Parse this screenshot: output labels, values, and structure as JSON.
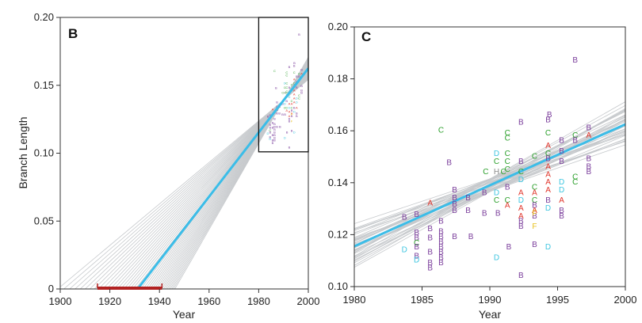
{
  "chart_data": [
    {
      "panel": "B",
      "type": "line",
      "title": "",
      "xlabel": "Year",
      "ylabel": "Branch Length",
      "xlim": [
        1900,
        2000
      ],
      "ylim": [
        0,
        0.2
      ],
      "xticks": [
        1900,
        1920,
        1940,
        1960,
        1980,
        2000
      ],
      "yticks": [
        "0",
        "0.05",
        "0.10",
        "0.15",
        "0.20"
      ],
      "regression": {
        "x": [
          1931.2,
          2000
        ],
        "y": [
          0.0,
          0.1625
        ],
        "color": "#3bbde8"
      },
      "bootstrap_lines": 40,
      "root_interval": {
        "x": [
          1915,
          1941
        ],
        "color": "#b22222"
      },
      "inset_box": {
        "x": [
          1980,
          2000
        ],
        "y": [
          0.101,
          0.2
        ]
      },
      "points": "same as panel C (scaled)"
    },
    {
      "panel": "C",
      "type": "scatter",
      "title": "",
      "xlabel": "Year",
      "ylabel": "",
      "xlim": [
        1980,
        2000
      ],
      "ylim": [
        0.1,
        0.2
      ],
      "xticks": [
        1980,
        1985,
        1990,
        1995,
        2000
      ],
      "yticks": [
        "0.10",
        "0.12",
        "0.14",
        "0.16",
        "0.18",
        "0.20"
      ],
      "regression": {
        "x": [
          1980,
          2000
        ],
        "y": [
          0.1155,
          0.1625
        ],
        "color": "#3bbde8"
      },
      "bootstrap_lines": 40,
      "subtype_colors": {
        "A": "#e0352b",
        "B": "#7a3d9b",
        "C": "#2ca02c",
        "D": "#3ec6e0",
        "F": "#e8c21e",
        "H": "#8a8a8a"
      },
      "points": [
        {
          "x": 1983.7,
          "y": 0.127,
          "l": "B"
        },
        {
          "x": 1983.7,
          "y": 0.1145,
          "l": "D"
        },
        {
          "x": 1984.6,
          "y": 0.128,
          "l": "B"
        },
        {
          "x": 1984.6,
          "y": 0.121,
          "l": "B"
        },
        {
          "x": 1984.6,
          "y": 0.119,
          "l": "B"
        },
        {
          "x": 1984.6,
          "y": 0.117,
          "l": "C"
        },
        {
          "x": 1984.6,
          "y": 0.1155,
          "l": "B"
        },
        {
          "x": 1984.6,
          "y": 0.112,
          "l": "B"
        },
        {
          "x": 1984.6,
          "y": 0.1105,
          "l": "D"
        },
        {
          "x": 1985.6,
          "y": 0.1325,
          "l": "A"
        },
        {
          "x": 1985.6,
          "y": 0.1225,
          "l": "B"
        },
        {
          "x": 1985.6,
          "y": 0.119,
          "l": "B"
        },
        {
          "x": 1985.6,
          "y": 0.1135,
          "l": "B"
        },
        {
          "x": 1985.6,
          "y": 0.1095,
          "l": "B"
        },
        {
          "x": 1985.6,
          "y": 0.1075,
          "l": "B"
        },
        {
          "x": 1986.4,
          "y": 0.1605,
          "l": "C"
        },
        {
          "x": 1986.4,
          "y": 0.1255,
          "l": "B"
        },
        {
          "x": 1986.4,
          "y": 0.1215,
          "l": "B"
        },
        {
          "x": 1986.4,
          "y": 0.1195,
          "l": "B"
        },
        {
          "x": 1986.4,
          "y": 0.1175,
          "l": "B"
        },
        {
          "x": 1986.4,
          "y": 0.1155,
          "l": "B"
        },
        {
          "x": 1986.4,
          "y": 0.1135,
          "l": "B"
        },
        {
          "x": 1986.4,
          "y": 0.1115,
          "l": "B"
        },
        {
          "x": 1986.4,
          "y": 0.1095,
          "l": "B"
        },
        {
          "x": 1987.0,
          "y": 0.148,
          "l": "B"
        },
        {
          "x": 1987.4,
          "y": 0.1375,
          "l": "B"
        },
        {
          "x": 1987.4,
          "y": 0.1345,
          "l": "B"
        },
        {
          "x": 1987.4,
          "y": 0.132,
          "l": "B"
        },
        {
          "x": 1987.4,
          "y": 0.1295,
          "l": "B"
        },
        {
          "x": 1987.4,
          "y": 0.1195,
          "l": "B"
        },
        {
          "x": 1988.4,
          "y": 0.1345,
          "l": "B"
        },
        {
          "x": 1988.4,
          "y": 0.1295,
          "l": "B"
        },
        {
          "x": 1988.6,
          "y": 0.1195,
          "l": "B"
        },
        {
          "x": 1989.7,
          "y": 0.1445,
          "l": "C"
        },
        {
          "x": 1989.6,
          "y": 0.1365,
          "l": "B"
        },
        {
          "x": 1989.6,
          "y": 0.1285,
          "l": "B"
        },
        {
          "x": 1990.5,
          "y": 0.1515,
          "l": "D"
        },
        {
          "x": 1990.5,
          "y": 0.1485,
          "l": "C"
        },
        {
          "x": 1990.5,
          "y": 0.1445,
          "l": "H"
        },
        {
          "x": 1990.5,
          "y": 0.1365,
          "l": "D"
        },
        {
          "x": 1990.5,
          "y": 0.1335,
          "l": "C"
        },
        {
          "x": 1990.6,
          "y": 0.1285,
          "l": "B"
        },
        {
          "x": 1990.5,
          "y": 0.1115,
          "l": "D"
        },
        {
          "x": 1991.3,
          "y": 0.1595,
          "l": "C"
        },
        {
          "x": 1991.3,
          "y": 0.1575,
          "l": "C"
        },
        {
          "x": 1991.3,
          "y": 0.1515,
          "l": "C"
        },
        {
          "x": 1991.3,
          "y": 0.1485,
          "l": "C"
        },
        {
          "x": 1991.3,
          "y": 0.1455,
          "l": "C"
        },
        {
          "x": 1991.3,
          "y": 0.1385,
          "l": "B"
        },
        {
          "x": 1991.3,
          "y": 0.1335,
          "l": "C"
        },
        {
          "x": 1991.3,
          "y": 0.1315,
          "l": "A"
        },
        {
          "x": 1991.4,
          "y": 0.1155,
          "l": "B"
        },
        {
          "x": 1991.0,
          "y": 0.1445,
          "l": "C"
        },
        {
          "x": 1992.3,
          "y": 0.1635,
          "l": "B"
        },
        {
          "x": 1992.3,
          "y": 0.1485,
          "l": "B"
        },
        {
          "x": 1992.3,
          "y": 0.1445,
          "l": "C"
        },
        {
          "x": 1992.3,
          "y": 0.1415,
          "l": "D"
        },
        {
          "x": 1992.3,
          "y": 0.1365,
          "l": "A"
        },
        {
          "x": 1992.3,
          "y": 0.1335,
          "l": "D"
        },
        {
          "x": 1992.3,
          "y": 0.1305,
          "l": "A"
        },
        {
          "x": 1992.3,
          "y": 0.1275,
          "l": "A"
        },
        {
          "x": 1992.3,
          "y": 0.1255,
          "l": "B"
        },
        {
          "x": 1992.3,
          "y": 0.1235,
          "l": "B"
        },
        {
          "x": 1992.3,
          "y": 0.1045,
          "l": "B"
        },
        {
          "x": 1993.3,
          "y": 0.1505,
          "l": "C"
        },
        {
          "x": 1993.3,
          "y": 0.1385,
          "l": "C"
        },
        {
          "x": 1993.3,
          "y": 0.1365,
          "l": "A"
        },
        {
          "x": 1993.3,
          "y": 0.1335,
          "l": "C"
        },
        {
          "x": 1993.3,
          "y": 0.1315,
          "l": "B"
        },
        {
          "x": 1993.3,
          "y": 0.1295,
          "l": "A"
        },
        {
          "x": 1993.3,
          "y": 0.1275,
          "l": "B"
        },
        {
          "x": 1993.3,
          "y": 0.1235,
          "l": "F"
        },
        {
          "x": 1993.3,
          "y": 0.1165,
          "l": "B"
        },
        {
          "x": 1993.3,
          "y": 0.1285,
          "l": "F"
        },
        {
          "x": 1994.3,
          "y": 0.1645,
          "l": "B"
        },
        {
          "x": 1994.3,
          "y": 0.1595,
          "l": "C"
        },
        {
          "x": 1994.3,
          "y": 0.1545,
          "l": "A"
        },
        {
          "x": 1994.3,
          "y": 0.1515,
          "l": "C"
        },
        {
          "x": 1994.3,
          "y": 0.1495,
          "l": "B"
        },
        {
          "x": 1994.3,
          "y": 0.1465,
          "l": "A"
        },
        {
          "x": 1994.3,
          "y": 0.1435,
          "l": "A"
        },
        {
          "x": 1994.3,
          "y": 0.1405,
          "l": "A"
        },
        {
          "x": 1994.3,
          "y": 0.1375,
          "l": "A"
        },
        {
          "x": 1994.3,
          "y": 0.1335,
          "l": "B"
        },
        {
          "x": 1994.3,
          "y": 0.1305,
          "l": "D"
        },
        {
          "x": 1994.3,
          "y": 0.1155,
          "l": "D"
        },
        {
          "x": 1994.4,
          "y": 0.1665,
          "l": "B"
        },
        {
          "x": 1995.3,
          "y": 0.1565,
          "l": "B"
        },
        {
          "x": 1995.3,
          "y": 0.1525,
          "l": "B"
        },
        {
          "x": 1995.3,
          "y": 0.1485,
          "l": "B"
        },
        {
          "x": 1995.3,
          "y": 0.1405,
          "l": "D"
        },
        {
          "x": 1995.3,
          "y": 0.1375,
          "l": "D"
        },
        {
          "x": 1995.3,
          "y": 0.1335,
          "l": "A"
        },
        {
          "x": 1995.3,
          "y": 0.1295,
          "l": "B"
        },
        {
          "x": 1995.3,
          "y": 0.1275,
          "l": "B"
        },
        {
          "x": 1996.3,
          "y": 0.1875,
          "l": "B"
        },
        {
          "x": 1996.3,
          "y": 0.1585,
          "l": "C"
        },
        {
          "x": 1996.3,
          "y": 0.1565,
          "l": "B"
        },
        {
          "x": 1996.3,
          "y": 0.1425,
          "l": "C"
        },
        {
          "x": 1996.3,
          "y": 0.1405,
          "l": "C"
        },
        {
          "x": 1997.3,
          "y": 0.1615,
          "l": "B"
        },
        {
          "x": 1997.3,
          "y": 0.1585,
          "l": "A"
        },
        {
          "x": 1997.3,
          "y": 0.1495,
          "l": "B"
        },
        {
          "x": 1997.3,
          "y": 0.1465,
          "l": "B"
        },
        {
          "x": 1997.3,
          "y": 0.1445,
          "l": "B"
        }
      ]
    }
  ]
}
